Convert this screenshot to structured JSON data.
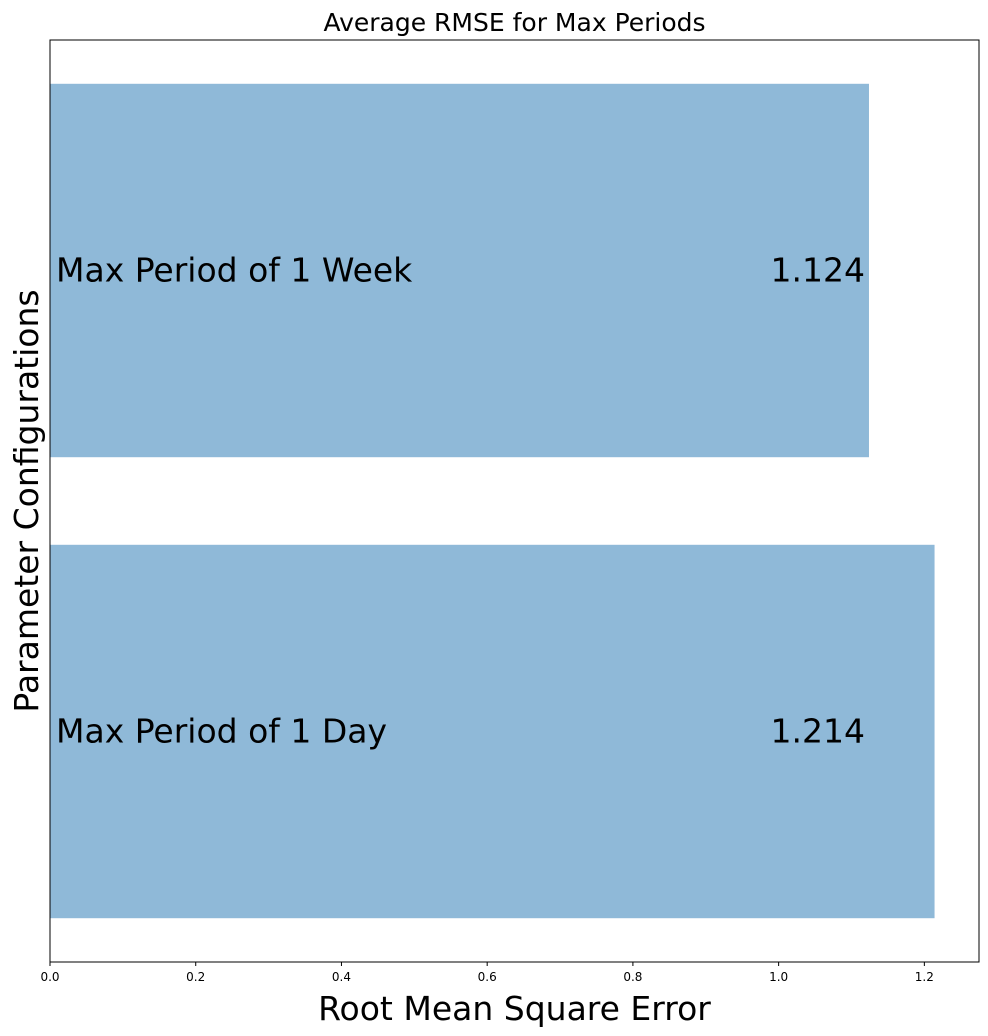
{
  "chart_data": {
    "type": "bar",
    "orientation": "horizontal",
    "title": "Average RMSE for Max Periods",
    "xlabel": "Root Mean Square Error",
    "ylabel": "Parameter Configurations",
    "categories": [
      "Max Period of 1 Week",
      "Max Period of 1 Day"
    ],
    "values": [
      1.124,
      1.214
    ],
    "value_labels": [
      "1.124",
      "1.214"
    ],
    "xlim": [
      0,
      1.275
    ],
    "xticks": [
      0.0,
      0.2,
      0.4,
      0.6,
      0.8,
      1.0,
      1.2
    ],
    "xtick_labels": [
      "0.0",
      "0.2",
      "0.4",
      "0.6",
      "0.8",
      "1.0",
      "1.2"
    ],
    "grid": false,
    "legend": "none",
    "colors": {
      "bar": "#8fb9d8",
      "text": "#000000",
      "axes": "#000000"
    }
  }
}
